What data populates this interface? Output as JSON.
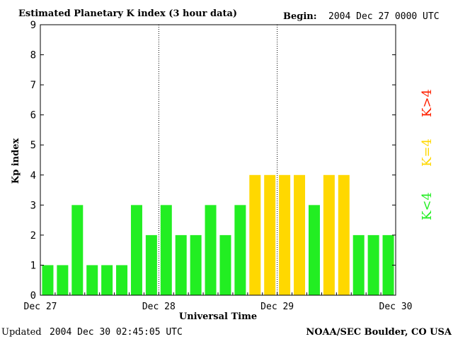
{
  "header": {
    "title": "Estimated Planetary K index (3 hour data)",
    "begin_label": "Begin:",
    "begin_value": "2004 Dec 27 0000 UTC"
  },
  "footer": {
    "updated_label": "Updated",
    "updated_value": "2004 Dec 30 02:45:05 UTC",
    "source": "NOAA/SEC Boulder, CO USA"
  },
  "legend": [
    {
      "label": "K>4",
      "color": "#ff2000"
    },
    {
      "label": "K=4",
      "color": "#ffd800"
    },
    {
      "label": "K<4",
      "color": "#22ee22"
    }
  ],
  "chart_data": {
    "type": "bar",
    "title": "Estimated Planetary K index (3 hour data)",
    "xlabel": "Universal Time",
    "ylabel": "Kp index",
    "ylim": [
      0,
      9
    ],
    "yticks": [
      "0",
      "1",
      "2",
      "3",
      "4",
      "5",
      "6",
      "7",
      "8",
      "9"
    ],
    "xticks": [
      "Dec 27",
      "Dec 28",
      "Dec 29",
      "Dec 30"
    ],
    "day_dividers": "dotted",
    "interval_hours": 3,
    "values": [
      1,
      1,
      3,
      1,
      1,
      1,
      3,
      2,
      3,
      2,
      2,
      3,
      2,
      3,
      4,
      4,
      4,
      4,
      3,
      4,
      4,
      2,
      2,
      2
    ],
    "colors": {
      "below": "#22ee22",
      "equal": "#ffd800",
      "above": "#ff2000"
    }
  }
}
